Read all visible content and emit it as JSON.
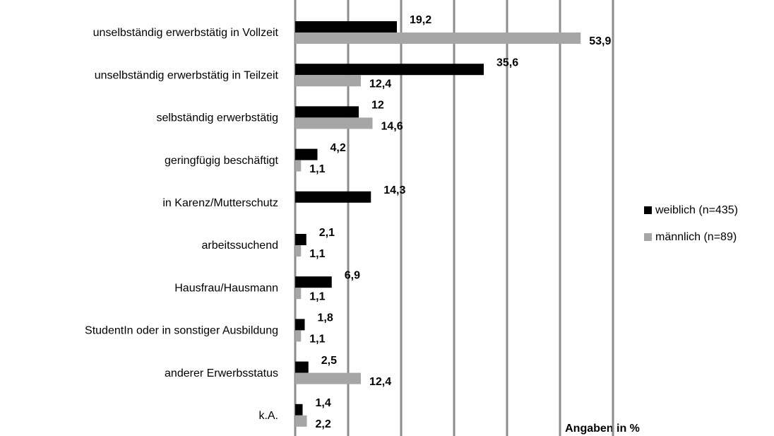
{
  "chart_data": {
    "type": "bar",
    "orientation": "horizontal",
    "x_label": "Angaben in %",
    "categories": [
      "unselbständig erwerbstätig in Vollzeit",
      "unselbständig erwerbstätig in Teilzeit",
      "selbständig erwerbstätig",
      "geringfügig beschäftigt",
      "in Karenz/Mutterschutz",
      "arbeitssuchend",
      "Hausfrau/Hausmann",
      "StudentIn oder in sonstiger Ausbildung",
      "anderer Erwerbsstatus",
      "k.A."
    ],
    "series": [
      {
        "name": "weiblich (n=435)",
        "color": "#000000",
        "values": [
          19.2,
          35.6,
          12,
          4.2,
          14.3,
          2.1,
          6.9,
          1.8,
          2.5,
          1.4
        ],
        "value_labels": [
          "19,2",
          "35,6",
          "12",
          "4,2",
          "14,3",
          "2,1",
          "6,9",
          "1,8",
          "2,5",
          "1,4"
        ]
      },
      {
        "name": "männlich (n=89)",
        "color": "#a6a6a6",
        "values": [
          53.9,
          12.4,
          14.6,
          1.1,
          null,
          1.1,
          1.1,
          1.1,
          12.4,
          2.2
        ],
        "value_labels": [
          "53,9",
          "12,4",
          "14,6",
          "1,1",
          null,
          "1,1",
          "1,1",
          "1,1",
          "12,4",
          "2,2"
        ]
      }
    ],
    "xlim": [
      0,
      60
    ],
    "xticks": [
      0,
      10,
      20,
      30,
      40,
      50,
      60
    ],
    "grid": true,
    "legend": "right"
  }
}
